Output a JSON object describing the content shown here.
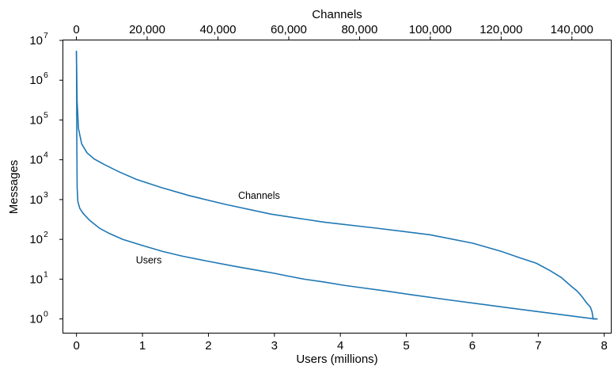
{
  "chart_data": {
    "type": "line",
    "title": "",
    "xlabel": "Users (millions)",
    "x2label": "Channels",
    "ylabel": "Messages",
    "yscale": "log",
    "xlim": [
      -0.2,
      8.1
    ],
    "x2lim": [
      -3700,
      151000
    ],
    "ylim": [
      0.45,
      10000000
    ],
    "grid": false,
    "x_ticks": [
      {
        "value": 0,
        "label": "0"
      },
      {
        "value": 1,
        "label": "1"
      },
      {
        "value": 2,
        "label": "2"
      },
      {
        "value": 3,
        "label": "3"
      },
      {
        "value": 4,
        "label": "4"
      },
      {
        "value": 5,
        "label": "5"
      },
      {
        "value": 6,
        "label": "6"
      },
      {
        "value": 7,
        "label": "7"
      },
      {
        "value": 8,
        "label": "8"
      }
    ],
    "x2_ticks": [
      {
        "value": 0,
        "label": "0"
      },
      {
        "value": 20000,
        "label": "20,000"
      },
      {
        "value": 40000,
        "label": "40,000"
      },
      {
        "value": 60000,
        "label": "60,000"
      },
      {
        "value": 80000,
        "label": "80,000"
      },
      {
        "value": 100000,
        "label": "100,000"
      },
      {
        "value": 120000,
        "label": "120,000"
      },
      {
        "value": 140000,
        "label": "140,000"
      }
    ],
    "y_ticks": [
      {
        "value": 1,
        "base": "10",
        "exp": "0"
      },
      {
        "value": 10,
        "base": "10",
        "exp": "1"
      },
      {
        "value": 100,
        "base": "10",
        "exp": "2"
      },
      {
        "value": 1000,
        "base": "10",
        "exp": "3"
      },
      {
        "value": 10000,
        "base": "10",
        "exp": "4"
      },
      {
        "value": 100000,
        "base": "10",
        "exp": "5"
      },
      {
        "value": 1000000,
        "base": "10",
        "exp": "6"
      },
      {
        "value": 10000000,
        "base": "10",
        "exp": "7"
      }
    ],
    "series": [
      {
        "label": "Channels",
        "color": "#1f77b4",
        "axis": "top",
        "step": false,
        "x": [
          0,
          200,
          600,
          1500,
          3000,
          5000,
          8000,
          12000,
          17000,
          24000,
          32000,
          42000,
          55000,
          70000,
          85000,
          100000,
          112000,
          120000,
          125000,
          130000,
          134000,
          137000,
          139500,
          141500,
          143000,
          144200,
          145200,
          145700,
          146000,
          147000
        ],
        "y": [
          5500000,
          300000,
          60000,
          25000,
          15000,
          10500,
          7500,
          5000,
          3200,
          2000,
          1250,
          760,
          430,
          270,
          190,
          130,
          80,
          50,
          35,
          25,
          16,
          11,
          7,
          5,
          3.5,
          2.5,
          2,
          1.5,
          1,
          1
        ]
      },
      {
        "label": "Users",
        "color": "#1f77b4",
        "axis": "bottom",
        "step": false,
        "x": [
          0,
          0.005,
          0.01,
          0.02,
          0.05,
          0.1,
          0.2,
          0.35,
          0.5,
          0.7,
          1.0,
          1.3,
          1.6,
          2.0,
          2.4,
          2.8,
          3.0,
          3.2,
          3.45,
          3.75,
          4.05,
          4.35,
          4.7,
          5.1,
          5.65,
          6.45,
          7.85,
          7.9
        ],
        "y": [
          5000000,
          30000,
          2000,
          900,
          600,
          450,
          300,
          190,
          140,
          100,
          70,
          50,
          38,
          28,
          21,
          16,
          14,
          12,
          10,
          8.5,
          7,
          6,
          5,
          4,
          3,
          2,
          1,
          1
        ]
      }
    ],
    "annotations": [
      {
        "text": "Channels",
        "x": 2.45,
        "y": 1050
      },
      {
        "text": "Users",
        "x": 0.9,
        "y": 25
      }
    ]
  }
}
